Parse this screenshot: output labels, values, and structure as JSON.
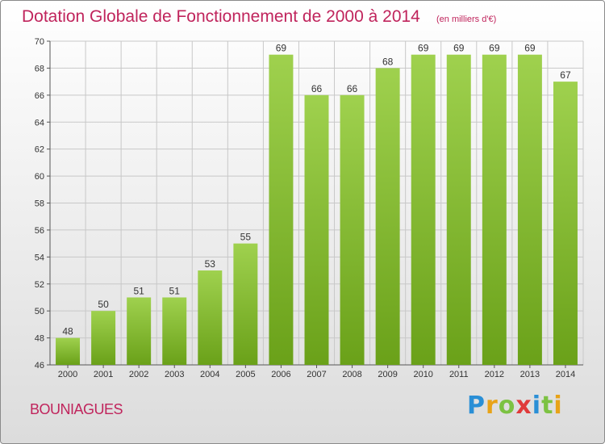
{
  "header": {
    "title": "Dotation Globale de Fonctionnement de 2000 à 2014",
    "subtitle": "(en milliers d'€)"
  },
  "footer": {
    "place": "BOUNIAGUES",
    "logo_letters": [
      "P",
      "r",
      "o",
      "x",
      "i",
      "t",
      "i"
    ],
    "logo_colors": [
      "#2a8fd6",
      "#e8a318",
      "#7cc242",
      "#e03a3a",
      "#2a8fd6",
      "#7cc242",
      "#e8a318"
    ]
  },
  "colors": {
    "bar_light": "#9fd14e",
    "bar_dark": "#6aa119",
    "grid": "#c8c8c8",
    "accent": "#c0245c"
  },
  "chart_data": {
    "type": "bar",
    "categories": [
      "2000",
      "2001",
      "2002",
      "2003",
      "2004",
      "2005",
      "2006",
      "2007",
      "2008",
      "2009",
      "2010",
      "2011",
      "2012",
      "2013",
      "2014"
    ],
    "values": [
      48,
      50,
      51,
      51,
      53,
      55,
      69,
      66,
      66,
      68,
      69,
      69,
      69,
      69,
      67
    ],
    "title": "Dotation Globale de Fonctionnement de 2000 à 2014",
    "subtitle": "(en milliers d'€)",
    "ylim": [
      46,
      70
    ],
    "yticks": [
      46,
      48,
      50,
      52,
      54,
      56,
      58,
      60,
      62,
      64,
      66,
      68,
      70
    ],
    "grid": true,
    "data_labels": true
  }
}
